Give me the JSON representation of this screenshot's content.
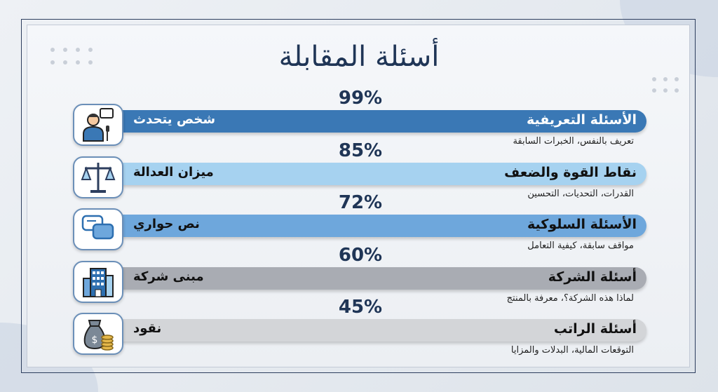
{
  "title": "أسئلة المقابلة",
  "items": [
    {
      "percent": "99%",
      "value": 99,
      "title": "الأسئلة التعريفية",
      "keyword": "شخص يتحدث",
      "subtitle": "تعريف بالنفس، الخبرات السابقة",
      "icon": "person-speaking-icon",
      "color": "#3a78b5",
      "text_color": "#ffffff"
    },
    {
      "percent": "85%",
      "value": 85,
      "title": "نقاط القوة والضعف",
      "keyword": "ميزان العدالة",
      "subtitle": "القدرات، التحديات، التحسين",
      "icon": "scales-icon",
      "color": "#a6d2f0",
      "text_color": "#111111"
    },
    {
      "percent": "72%",
      "value": 72,
      "title": "الأسئلة السلوكية",
      "keyword": "نص حواري",
      "subtitle": "مواقف سابقة، كيفية التعامل",
      "icon": "chat-bubbles-icon",
      "color": "#6ea7dc",
      "text_color": "#111111"
    },
    {
      "percent": "60%",
      "value": 60,
      "title": "أسئلة الشركة",
      "keyword": "مبنى شركة",
      "subtitle": "لماذا هذه الشركة؟، معرفة بالمنتج",
      "icon": "office-building-icon",
      "color": "#a9acb3",
      "text_color": "#111111"
    },
    {
      "percent": "45%",
      "value": 45,
      "title": "أسئلة الراتب",
      "keyword": "نقود",
      "subtitle": "التوقعات المالية، البدلات والمزايا",
      "icon": "money-bag-icon",
      "color": "#d3d5d8",
      "text_color": "#111111"
    }
  ]
}
